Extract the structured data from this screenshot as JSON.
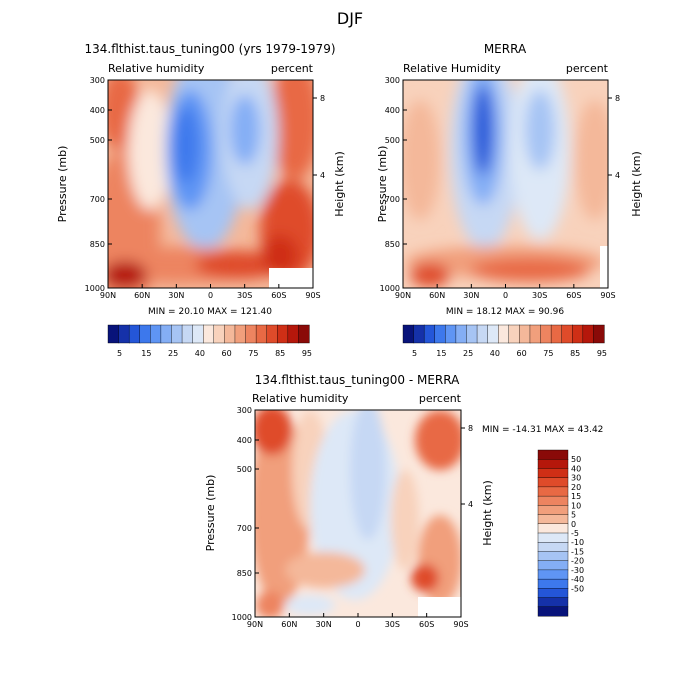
{
  "figure_title": "DJF",
  "colors": {
    "blue": [
      "#08137a",
      "#1531a9",
      "#2456d8",
      "#3d78ec",
      "#5f95f4",
      "#84aef5",
      "#a6c4f4",
      "#c6d8f4",
      "#dde8f7"
    ],
    "red": [
      "#fbe8dd",
      "#f8d2bc",
      "#f4b89a",
      "#f19f7c",
      "#ed8460",
      "#e86944",
      "#df4b2a",
      "#cf2f16",
      "#b5170b",
      "#8a0a08"
    ]
  },
  "chart_data": [
    {
      "type": "heatmap",
      "title": "134.flthist.taus_tuning00 (yrs 1979-1979)",
      "left_label": "Relative humidity",
      "right_label": "percent",
      "ylabel": "Pressure (mb)",
      "y2label": "Height (km)",
      "x_ticks": [
        "90N",
        "60N",
        "30N",
        "0",
        "30S",
        "60S",
        "90S"
      ],
      "y_ticks": [
        "300",
        "400",
        "500",
        "700",
        "850",
        "1000"
      ],
      "y2_ticks": [
        "8",
        "4"
      ],
      "stats": "MIN =  20.10   MAX = 121.40",
      "min": 20.1,
      "max": 121.4,
      "colorbar_labels": [
        "5",
        "15",
        "25",
        "40",
        "60",
        "75",
        "85",
        "95"
      ]
    },
    {
      "type": "heatmap",
      "title": "MERRA",
      "left_label": "Relative Humidity",
      "right_label": "percent",
      "ylabel": "Pressure (mb)",
      "y2label": "Height (km)",
      "x_ticks": [
        "90N",
        "60N",
        "30N",
        "0",
        "30S",
        "60S",
        "90S"
      ],
      "y_ticks": [
        "300",
        "400",
        "500",
        "700",
        "850",
        "1000"
      ],
      "y2_ticks": [
        "8",
        "4"
      ],
      "stats": "MIN =  18.12   MAX =  90.96",
      "min": 18.12,
      "max": 90.96,
      "colorbar_labels": [
        "5",
        "15",
        "25",
        "40",
        "60",
        "75",
        "85",
        "95"
      ]
    },
    {
      "type": "heatmap",
      "title": "134.flthist.taus_tuning00 - MERRA",
      "left_label": "Relative humidity",
      "right_label": "percent",
      "ylabel": "Pressure (mb)",
      "y2label": "Height (km)",
      "x_ticks": [
        "90N",
        "60N",
        "30N",
        "0",
        "30S",
        "60S",
        "90S"
      ],
      "y_ticks": [
        "300",
        "400",
        "500",
        "700",
        "850",
        "1000"
      ],
      "y2_ticks": [
        "8",
        "4"
      ],
      "stats": "MIN = -14.31   MAX =  43.42",
      "min": -14.31,
      "max": 43.42,
      "colorbar_labels": [
        "50",
        "40",
        "30",
        "20",
        "15",
        "10",
        "5",
        "0",
        "-5",
        "-10",
        "-15",
        "-20",
        "-30",
        "-40",
        "-50"
      ]
    }
  ]
}
